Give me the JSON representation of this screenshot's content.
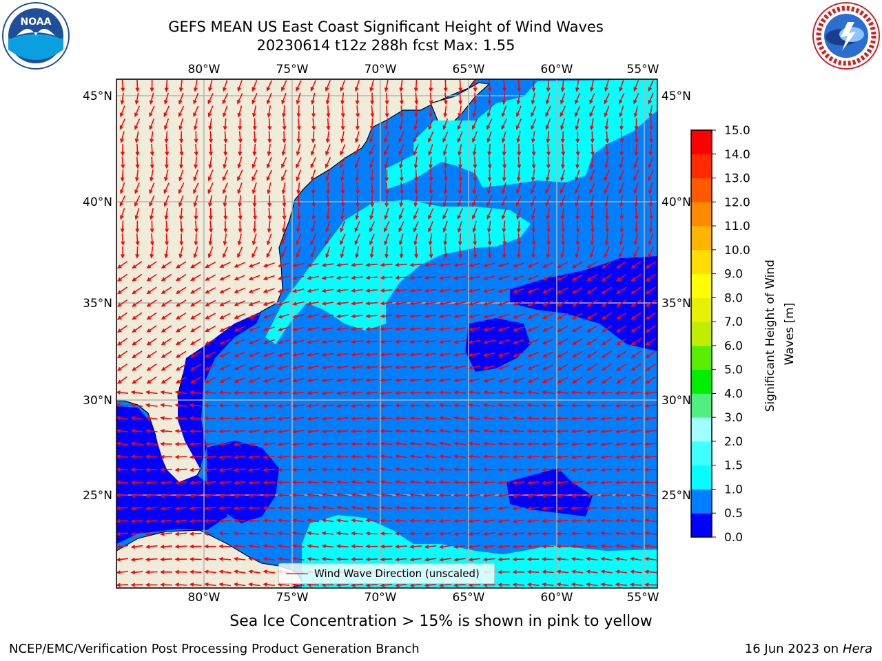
{
  "title": {
    "line1": "GEFS MEAN US East Coast Significant Height of Wind Waves",
    "line2": "20230614 t12z 288h fcst   Max: 1.55"
  },
  "logos": {
    "left": "NOAA",
    "right": "National Weather Service"
  },
  "map": {
    "lon_labels": [
      "80°W",
      "75°W",
      "70°W",
      "65°W",
      "60°W",
      "55°W"
    ],
    "lat_labels": [
      "45°N",
      "40°N",
      "35°N",
      "30°N",
      "25°N"
    ],
    "lon_values": [
      -80,
      -75,
      -70,
      -65,
      -60,
      -55
    ],
    "lat_values": [
      45,
      40,
      35,
      30,
      25
    ],
    "lon_range": [
      -85,
      -54.4
    ],
    "lat_range": [
      20.5,
      45.8
    ],
    "legend_label": "Wind Wave Direction (unscaled)",
    "arrow_color": "#ff0000",
    "land_color": "#efedda"
  },
  "colorbar": {
    "label": "Significant Height of Wind Waves [m]",
    "ticks": [
      "0.0",
      "0.5",
      "1.0",
      "1.5",
      "2.0",
      "3.0",
      "4.0",
      "5.0",
      "6.0",
      "7.0",
      "8.0",
      "9.0",
      "10.0",
      "11.0",
      "12.0",
      "13.0",
      "14.0",
      "15.0"
    ],
    "colors": [
      "#0000ff",
      "#0080ff",
      "#00ffff",
      "#40ffff",
      "#a0ffff",
      "#50f080",
      "#00ee00",
      "#58ee00",
      "#c0ee00",
      "#e6f000",
      "#ffff00",
      "#ffdd00",
      "#ffb400",
      "#ff8a00",
      "#ff5a00",
      "#ff2a00",
      "#ff0000"
    ]
  },
  "subtitle": "Sea Ice Concentration > 15% is shown in pink to yellow",
  "footer": {
    "left": "NCEP/EMC/Verification Post Processing Product Generation Branch",
    "right_date": "16 Jun 2023 on",
    "right_host": "Hera"
  }
}
